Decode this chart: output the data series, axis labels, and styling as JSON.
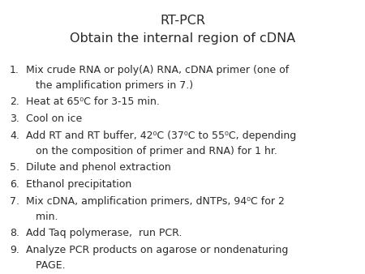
{
  "title_line1": "RT-PCR",
  "title_line2": "Obtain the internal region of cDNA",
  "background_color": "#ffffff",
  "text_color": "#2a2a2a",
  "title_fontsize": 11.5,
  "body_fontsize": 9.0,
  "items": [
    {
      "num": "1.",
      "line1": "Mix crude RNA or poly(A) RNA, cDNA primer (one of",
      "line2": "   the amplification primers in 7.)"
    },
    {
      "num": "2.",
      "line1": "Heat at 65⁰C for 3-15 min.",
      "line2": null
    },
    {
      "num": "3.",
      "line1": "Cool on ice",
      "line2": null
    },
    {
      "num": "4.",
      "line1": "Add RT and RT buffer, 42⁰C (37⁰C to 55⁰C, depending",
      "line2": "   on the composition of primer and RNA) for 1 hr."
    },
    {
      "num": "5.",
      "line1": "Dilute and phenol extraction",
      "line2": null
    },
    {
      "num": "6.",
      "line1": "Ethanol precipitation",
      "line2": null
    },
    {
      "num": "7.",
      "line1": "Mix cDNA, amplification primers, dNTPs, 94⁰C for 2",
      "line2": "   min."
    },
    {
      "num": "8.",
      "line1": "Add Taq polymerase,  run PCR.",
      "line2": null
    },
    {
      "num": "9.",
      "line1": "Analyze PCR products on agarose or nondenaturing",
      "line2": "   PAGE."
    }
  ]
}
